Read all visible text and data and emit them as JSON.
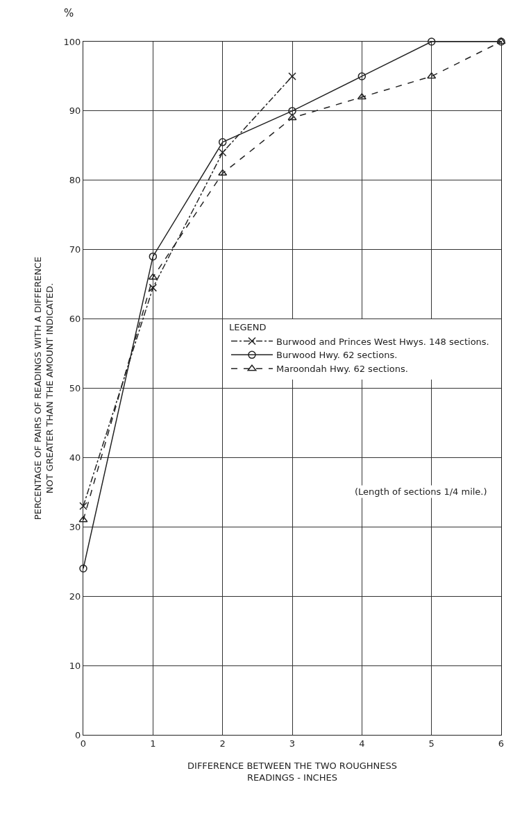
{
  "chart_data": {
    "type": "line",
    "ylabel": "PERCENTAGE OF PAIRS OF READINGS WITH A DIFFERENCE\nNOT GREATER THAN THE AMOUNT INDICATED.",
    "xlabel": "DIFFERENCE BETWEEN THE TWO ROUGHNESS\nREADINGS - INCHES",
    "legend_title": "LEGEND",
    "annotations": [
      "%",
      "(Length of sections 1/4 mile.)"
    ],
    "series": [
      {
        "name": "Burwood and Princes West Hwys. 148 sections.",
        "color": "#222222",
        "x": [
          0,
          1,
          2,
          3
        ],
        "values": [
          33,
          64.5,
          84,
          95
        ],
        "marker": "cross",
        "line_style": "dashdot"
      },
      {
        "name": "Burwood Hwy. 62 sections.",
        "color": "#222222",
        "x": [
          0,
          1,
          2,
          3,
          4,
          5,
          6
        ],
        "values": [
          24,
          69,
          85.5,
          90,
          95,
          100,
          100
        ],
        "marker": "circle",
        "line_style": "solid"
      },
      {
        "name": "Maroondah Hwy. 62 sections.",
        "color": "#222222",
        "x": [
          0,
          1,
          2,
          3,
          4,
          5,
          6
        ],
        "values": [
          31,
          66,
          81,
          89,
          92,
          95,
          100
        ],
        "marker": "triangle",
        "line_style": "dashed"
      }
    ],
    "xlim": [
      0,
      6
    ],
    "xticks": [
      0,
      1,
      2,
      3,
      4,
      5,
      6
    ],
    "ylim": [
      0,
      100
    ],
    "yticks": [
      0,
      10,
      20,
      30,
      40,
      50,
      60,
      70,
      80,
      90,
      100
    ],
    "grid": true,
    "legend": "right"
  }
}
